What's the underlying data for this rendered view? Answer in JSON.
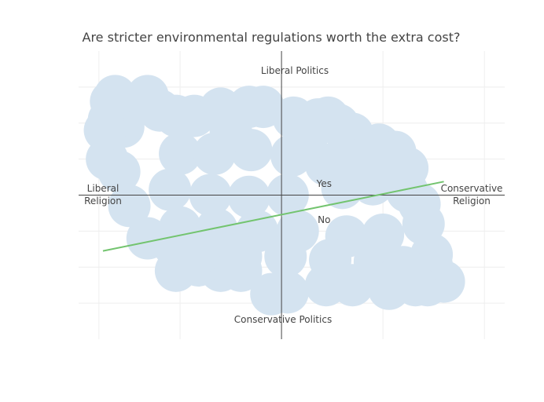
{
  "chart_data": {
    "type": "scatter",
    "title": "Are stricter environmental regulations worth the extra cost?",
    "xlim": [
      -10,
      11
    ],
    "ylim": [
      -8,
      8
    ],
    "grid": true,
    "axis_labels": {
      "left": [
        "Liberal",
        "Religion"
      ],
      "right": [
        "Conservative",
        "Religion"
      ],
      "top": "Liberal Politics",
      "bottom": "Conservative Politics"
    },
    "annotations": [
      {
        "text": "Yes",
        "x": 2.1,
        "y": 0.45
      },
      {
        "text": "No",
        "x": 2.1,
        "y": -1.55
      }
    ],
    "series": [
      {
        "mode": "markers",
        "marker_color": "#d4e3f0",
        "points": [
          [
            -8.2,
            5.5
          ],
          [
            -6.6,
            5.5
          ],
          [
            -8.5,
            4.2
          ],
          [
            -7.8,
            3.8
          ],
          [
            -6.0,
            4.7
          ],
          [
            -5.2,
            4.4
          ],
          [
            -4.3,
            4.4
          ],
          [
            -3.0,
            4.8
          ],
          [
            -1.6,
            4.9
          ],
          [
            -0.9,
            4.9
          ],
          [
            0.6,
            4.3
          ],
          [
            1.8,
            4.2
          ],
          [
            2.3,
            4.3
          ],
          [
            2.8,
            3.9
          ],
          [
            3.5,
            3.4
          ],
          [
            4.8,
            2.8
          ],
          [
            5.6,
            2.4
          ],
          [
            6.2,
            1.5
          ],
          [
            6.2,
            0.2
          ],
          [
            6.8,
            -0.5
          ],
          [
            7.0,
            -1.6
          ],
          [
            7.4,
            -3.3
          ],
          [
            7.4,
            -3.9
          ],
          [
            8.0,
            -4.8
          ],
          [
            7.2,
            -5.0
          ],
          [
            6.6,
            -5.0
          ],
          [
            5.3,
            -5.2
          ],
          [
            3.5,
            -5.0
          ],
          [
            2.2,
            -5.0
          ],
          [
            0.3,
            -5.4
          ],
          [
            -0.5,
            -5.5
          ],
          [
            -2.0,
            -4.2
          ],
          [
            -3.0,
            -4.2
          ],
          [
            -4.1,
            -3.9
          ],
          [
            -5.2,
            -4.2
          ],
          [
            -5.3,
            -2.8
          ],
          [
            -6.6,
            -2.4
          ],
          [
            -7.5,
            -0.6
          ],
          [
            -8.0,
            1.3
          ],
          [
            -8.6,
            2.0
          ],
          [
            -8.7,
            3.6
          ],
          [
            -8.4,
            5.2
          ],
          [
            -5.0,
            2.3
          ],
          [
            -3.3,
            2.3
          ],
          [
            -1.5,
            2.5
          ],
          [
            0.5,
            2.2
          ],
          [
            2.2,
            1.7
          ],
          [
            -5.5,
            0.3
          ],
          [
            -3.5,
            0.0
          ],
          [
            -1.6,
            -0.1
          ],
          [
            0.3,
            0.0
          ],
          [
            3.0,
            0.4
          ],
          [
            4.5,
            0.6
          ],
          [
            -5.0,
            -1.8
          ],
          [
            -3.2,
            -1.9
          ],
          [
            -1.2,
            -2.0
          ],
          [
            0.8,
            -2.0
          ],
          [
            3.2,
            -2.3
          ],
          [
            5.0,
            -2.2
          ],
          [
            -4.0,
            -3.2
          ],
          [
            -2.0,
            -3.4
          ],
          [
            0.2,
            -3.4
          ],
          [
            2.4,
            -3.6
          ],
          [
            4.6,
            -3.7
          ],
          [
            6.0,
            -4.0
          ],
          [
            -2.5,
            3.6
          ],
          [
            1.2,
            3.0
          ],
          [
            4.0,
            2.0
          ]
        ]
      },
      {
        "mode": "line",
        "line_color": "#73c46f",
        "x": [
          -8.8,
          8.0
        ],
        "y": [
          -3.1,
          0.75
        ]
      }
    ]
  }
}
